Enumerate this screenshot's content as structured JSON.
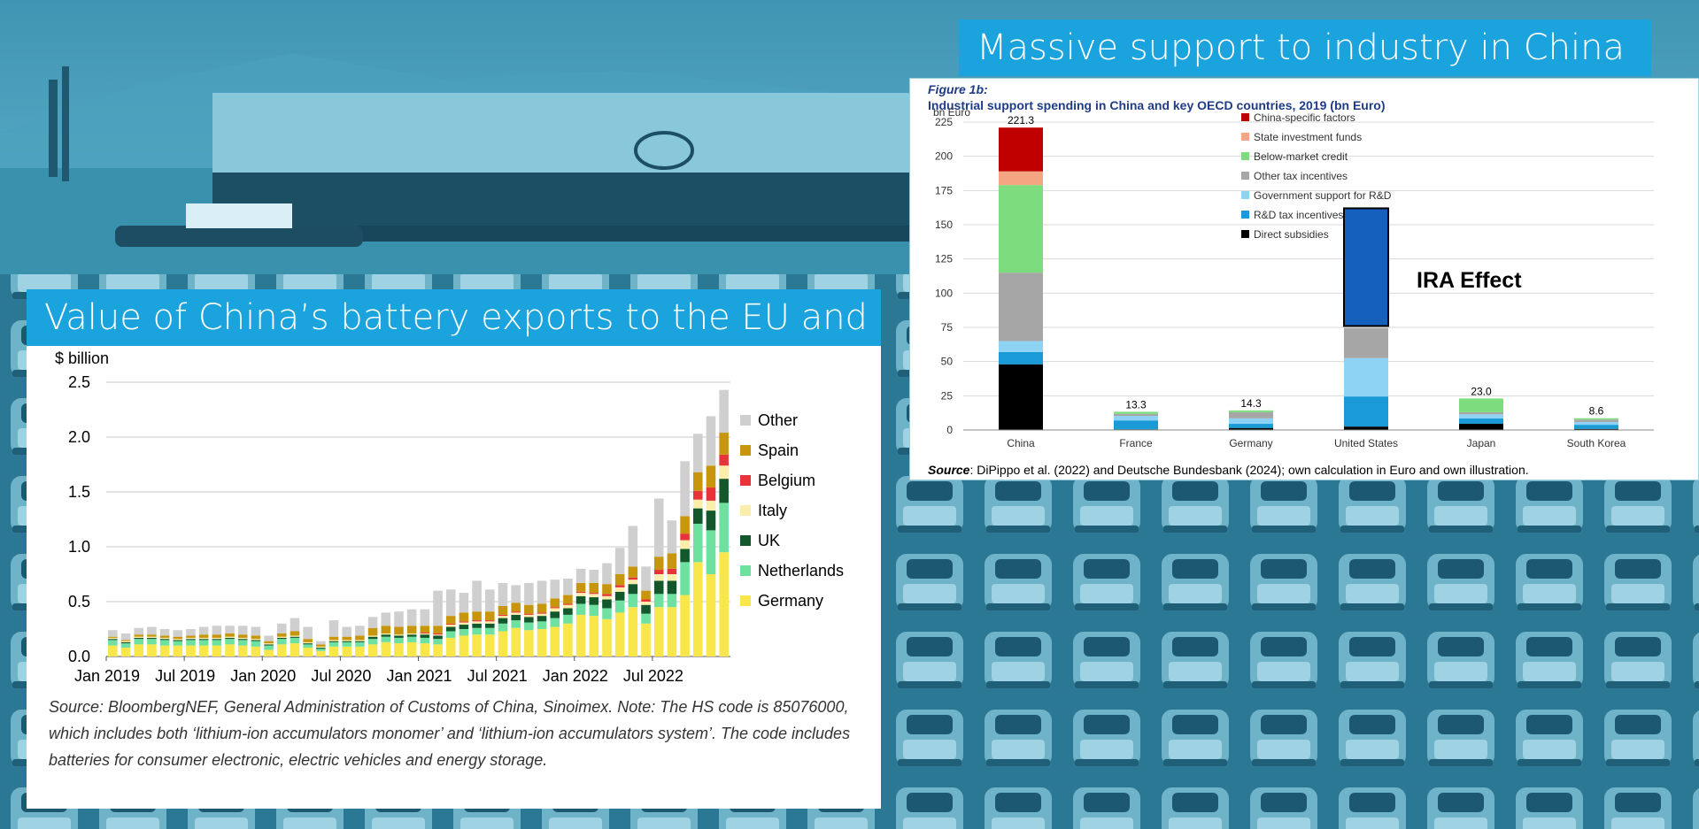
{
  "left": {
    "title": "Value of China’s battery exports to the EU and UK",
    "source": "Source: BloombergNEF, General Administration of Customs of China, Sinoimex. Note: The HS code is 85076000, which includes both ‘lithium-ion accumulators monomer’ and ‘lithium-ion accumulators system’. The code includes batteries for consumer electronic, electric vehicles and energy storage."
  },
  "right": {
    "banner": "Massive support to industry in China",
    "figure_label": "Figure 1b:",
    "subtitle": "Industrial support spending in China and key OECD countries, 2019 (bn Euro)",
    "source_label": "Source",
    "source_text": ": DiPippo et al. (2022) and Deutsche Bundesbank (2024); own calculation in Euro and own illustration.",
    "annotation": "IRA Effect"
  },
  "colors": {
    "banner": "#1aa3dc",
    "other": "#cfcfcf",
    "spain": "#c8960c",
    "belgium": "#e8333a",
    "italy": "#fbeeaa",
    "uk": "#12582c",
    "netherlands": "#6ee0a0",
    "germany": "#f8e64a",
    "china_specific": "#c00000",
    "state_funds": "#f4a582",
    "below_market": "#7ddc7d",
    "other_tax": "#a6a6a6",
    "gov_rd": "#8fd3f4",
    "rd_tax": "#1a9ad6",
    "direct": "#000000",
    "ira": "#1560bd"
  },
  "chart_data": [
    {
      "type": "bar",
      "stacked": true,
      "ylabel": "$ billion",
      "ylim": [
        0,
        2.5
      ],
      "yticks": [
        "0.0",
        "0.5",
        "1.0",
        "1.5",
        "2.0",
        "2.5"
      ],
      "xticks": [
        "Jan 2019",
        "Jul 2019",
        "Jan 2020",
        "Jul 2020",
        "Jan 2021",
        "Jul 2021",
        "Jan 2022",
        "Jul 2022"
      ],
      "legend_position": "right",
      "legend": [
        "Other",
        "Spain",
        "Belgium",
        "Italy",
        "UK",
        "Netherlands",
        "Germany"
      ],
      "months": 48,
      "series": [
        {
          "name": "Germany",
          "values": [
            0.1,
            0.08,
            0.11,
            0.11,
            0.1,
            0.1,
            0.1,
            0.1,
            0.1,
            0.11,
            0.1,
            0.09,
            0.06,
            0.11,
            0.12,
            0.08,
            0.05,
            0.09,
            0.09,
            0.09,
            0.11,
            0.13,
            0.12,
            0.13,
            0.12,
            0.11,
            0.17,
            0.19,
            0.2,
            0.2,
            0.23,
            0.26,
            0.24,
            0.25,
            0.27,
            0.3,
            0.38,
            0.37,
            0.34,
            0.4,
            0.45,
            0.3,
            0.45,
            0.45,
            0.56,
            0.86,
            0.75,
            0.95
          ]
        },
        {
          "name": "Netherlands",
          "values": [
            0.05,
            0.04,
            0.05,
            0.05,
            0.05,
            0.04,
            0.05,
            0.05,
            0.05,
            0.05,
            0.05,
            0.05,
            0.04,
            0.05,
            0.05,
            0.03,
            0.02,
            0.04,
            0.04,
            0.04,
            0.05,
            0.05,
            0.05,
            0.05,
            0.05,
            0.05,
            0.06,
            0.06,
            0.06,
            0.06,
            0.07,
            0.07,
            0.07,
            0.07,
            0.08,
            0.08,
            0.1,
            0.1,
            0.1,
            0.11,
            0.12,
            0.09,
            0.12,
            0.12,
            0.3,
            0.35,
            0.4,
            0.45
          ]
        },
        {
          "name": "UK",
          "values": [
            0.01,
            0.01,
            0.01,
            0.01,
            0.01,
            0.01,
            0.01,
            0.01,
            0.01,
            0.01,
            0.01,
            0.01,
            0.01,
            0.01,
            0.01,
            0.01,
            0.01,
            0.01,
            0.01,
            0.01,
            0.02,
            0.02,
            0.02,
            0.02,
            0.03,
            0.03,
            0.04,
            0.04,
            0.04,
            0.04,
            0.05,
            0.05,
            0.05,
            0.05,
            0.06,
            0.06,
            0.07,
            0.07,
            0.08,
            0.08,
            0.09,
            0.08,
            0.12,
            0.12,
            0.12,
            0.14,
            0.18,
            0.22
          ]
        },
        {
          "name": "Italy",
          "values": [
            0.01,
            0.01,
            0.01,
            0.01,
            0.01,
            0.01,
            0.01,
            0.01,
            0.01,
            0.01,
            0.01,
            0.01,
            0.01,
            0.01,
            0.01,
            0.01,
            0.01,
            0.01,
            0.01,
            0.01,
            0.01,
            0.01,
            0.01,
            0.01,
            0.01,
            0.01,
            0.02,
            0.02,
            0.02,
            0.02,
            0.02,
            0.02,
            0.02,
            0.02,
            0.03,
            0.03,
            0.03,
            0.03,
            0.03,
            0.04,
            0.04,
            0.03,
            0.06,
            0.06,
            0.08,
            0.08,
            0.09,
            0.12
          ]
        },
        {
          "name": "Belgium",
          "values": [
            0,
            0,
            0,
            0,
            0,
            0,
            0,
            0,
            0,
            0,
            0,
            0,
            0,
            0,
            0,
            0,
            0,
            0,
            0,
            0,
            0,
            0,
            0,
            0,
            0.01,
            0.01,
            0.01,
            0.01,
            0.01,
            0.01,
            0.01,
            0.01,
            0.01,
            0.01,
            0.01,
            0.01,
            0.01,
            0.01,
            0.02,
            0.02,
            0.02,
            0.02,
            0.04,
            0.05,
            0.06,
            0.08,
            0.12,
            0.1
          ]
        },
        {
          "name": "Spain",
          "values": [
            0.01,
            0.01,
            0.02,
            0.02,
            0.02,
            0.02,
            0.02,
            0.03,
            0.03,
            0.03,
            0.03,
            0.03,
            0.02,
            0.03,
            0.04,
            0.03,
            0.02,
            0.03,
            0.03,
            0.04,
            0.07,
            0.07,
            0.07,
            0.07,
            0.06,
            0.07,
            0.07,
            0.08,
            0.08,
            0.08,
            0.08,
            0.08,
            0.08,
            0.08,
            0.08,
            0.08,
            0.08,
            0.09,
            0.09,
            0.1,
            0.1,
            0.08,
            0.12,
            0.14,
            0.16,
            0.17,
            0.2,
            0.2
          ]
        },
        {
          "name": "Other",
          "values": [
            0.06,
            0.06,
            0.06,
            0.07,
            0.06,
            0.06,
            0.06,
            0.07,
            0.08,
            0.07,
            0.08,
            0.08,
            0.05,
            0.09,
            0.12,
            0.11,
            0.03,
            0.15,
            0.09,
            0.09,
            0.1,
            0.12,
            0.14,
            0.15,
            0.15,
            0.32,
            0.24,
            0.18,
            0.28,
            0.2,
            0.21,
            0.16,
            0.2,
            0.21,
            0.17,
            0.15,
            0.13,
            0.12,
            0.19,
            0.24,
            0.37,
            0.22,
            0.53,
            0.3,
            0.5,
            0.35,
            0.45,
            0.39
          ]
        }
      ]
    },
    {
      "type": "bar",
      "stacked": true,
      "title": "Industrial support spending in China and key OECD countries, 2019 (bn Euro)",
      "ylabel": "bn Euro",
      "ylim": [
        0,
        225
      ],
      "yticks": [
        "0",
        "25",
        "50",
        "75",
        "100",
        "125",
        "150",
        "175",
        "200",
        "225"
      ],
      "categories": [
        "China",
        "France",
        "Germany",
        "United States",
        "Japan",
        "South Korea"
      ],
      "totals": [
        "221.3",
        "13.3",
        "14.3",
        "",
        "23.0",
        "8.6"
      ],
      "legend_position": "top-center",
      "legend": [
        "China-specific factors",
        "State investment funds",
        "Below-market credit",
        "Other tax incentives",
        "Government support for R&D",
        "R&D tax incentives",
        "Direct subsidies"
      ],
      "series": [
        {
          "name": "Direct subsidies",
          "values": [
            48,
            0.5,
            1.5,
            2.5,
            4.5,
            0.8
          ]
        },
        {
          "name": "R&D tax incentives",
          "values": [
            9,
            6.5,
            3,
            22,
            4,
            3
          ]
        },
        {
          "name": "Government support for R&D",
          "values": [
            8,
            3.3,
            4,
            28,
            3,
            2
          ]
        },
        {
          "name": "Other tax incentives",
          "values": [
            50,
            1.5,
            4.5,
            22,
            1.5,
            1.8
          ]
        },
        {
          "name": "Below-market credit",
          "values": [
            64,
            1.5,
            1.3,
            0,
            10,
            1
          ]
        },
        {
          "name": "State investment funds",
          "values": [
            10,
            0,
            0,
            0,
            0,
            0
          ]
        },
        {
          "name": "China-specific factors",
          "values": [
            32,
            0,
            0,
            0,
            0,
            0
          ]
        }
      ],
      "annotation": {
        "label": "IRA Effect",
        "category": "United States",
        "from": 76,
        "to": 162
      }
    }
  ]
}
